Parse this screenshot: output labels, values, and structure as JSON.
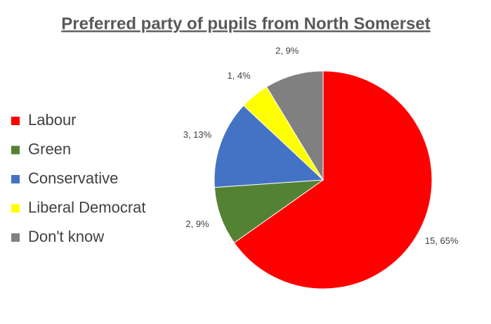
{
  "chart_data": {
    "type": "pie",
    "title": "Preferred party of pupils from North Somerset",
    "categories": [
      "Labour",
      "Green",
      "Conservative",
      "Liberal Democrat",
      "Don't know"
    ],
    "values": [
      15,
      2,
      3,
      1,
      2
    ],
    "value_labels": [
      "15, 65%",
      "2, 9%",
      "3, 13%",
      "1, 4%",
      "2, 9%"
    ],
    "colors": [
      "#ff0000",
      "#548235",
      "#4472c4",
      "#ffff00",
      "#808080"
    ],
    "legend": "left"
  }
}
